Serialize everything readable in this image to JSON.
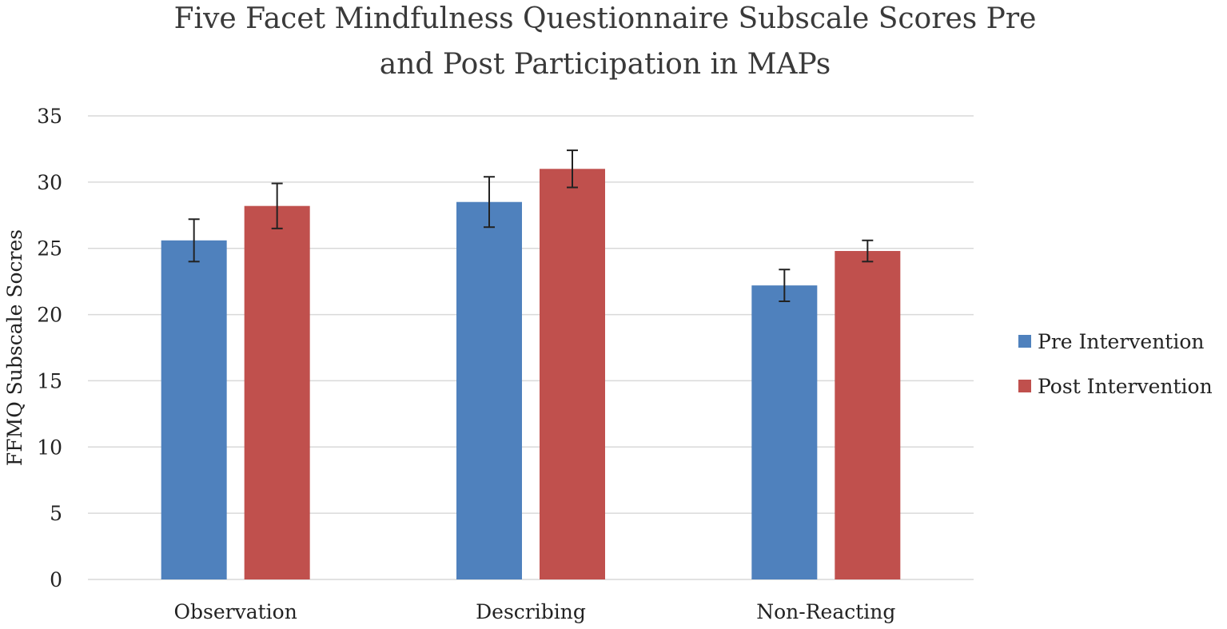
{
  "chart_data": {
    "type": "bar",
    "title": [
      "Five Facet Mindfulness Questionnaire Subscale Scores Pre",
      "and Post Participation in MAPs"
    ],
    "xlabel": "",
    "ylabel": "FFMQ Subscale Socres",
    "ylim": [
      0,
      35
    ],
    "yticks": [
      "0",
      "5",
      "10",
      "15",
      "20",
      "25",
      "30",
      "35"
    ],
    "ytick_values": [
      0,
      5,
      10,
      15,
      20,
      25,
      30,
      35
    ],
    "grid": true,
    "legend_position": "right",
    "categories": [
      "Observation",
      "Describing",
      "Non-Reacting"
    ],
    "series": [
      {
        "name": "Pre Intervention",
        "color": "#4f81bd",
        "values": [
          25.6,
          28.5,
          22.2
        ],
        "error": [
          1.6,
          1.9,
          1.2
        ]
      },
      {
        "name": "Post Intervention",
        "color": "#c0504d",
        "values": [
          28.2,
          31.0,
          24.8
        ],
        "error": [
          1.7,
          1.4,
          0.8
        ]
      }
    ]
  }
}
